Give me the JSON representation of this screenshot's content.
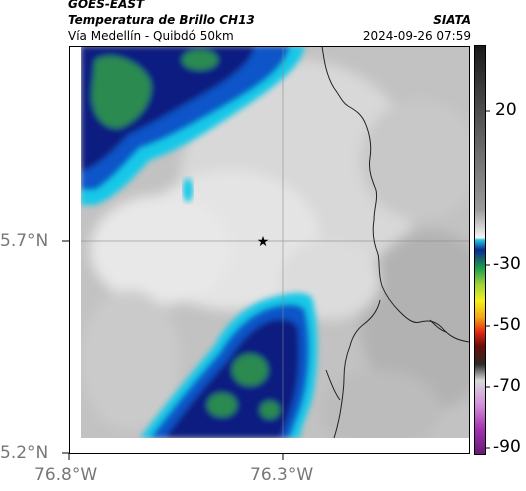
{
  "header": {
    "satellite": "GOES-EAST",
    "product": "Temperatura de Brillo CH13",
    "route": "Vía Medellín - Quibdó 50km",
    "agency": "SIATA",
    "timestamp": "2024-09-26 07:59"
  },
  "axes": {
    "lat_ticks": [
      "5.7°N",
      "5.2°N"
    ],
    "lon_ticks": [
      "76.8°W",
      "76.3°W"
    ]
  },
  "colorbar": {
    "ticks": [
      "20",
      "-30",
      "-50",
      "-70",
      "-90"
    ]
  },
  "marker": {
    "symbol": "★"
  },
  "colors": {
    "cold_cloud_dark": "#0d1a80",
    "cold_cloud_mid": "#0a54c8",
    "cold_cloud_cyan": "#18c8e8",
    "cold_cloud_green": "#2a9a55",
    "warm_gray": "#b8b8b8",
    "border_line": "#222222"
  }
}
